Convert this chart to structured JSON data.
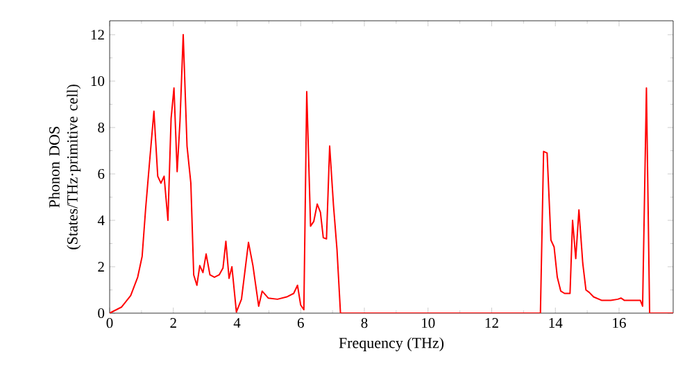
{
  "chart_data": {
    "type": "line",
    "xlabel": "Frequency (THz)",
    "ylabel": "Phonon DOS (States/THz·primitive cell)",
    "xlim": [
      0,
      17.7
    ],
    "ylim": [
      0,
      12.6
    ],
    "xticks": [
      0,
      2,
      4,
      6,
      8,
      10,
      12,
      14,
      16
    ],
    "yticks": [
      0,
      2,
      4,
      6,
      8,
      10,
      12
    ],
    "series": [
      {
        "color": "#ff0000",
        "x": [
          0,
          0.37,
          0.66,
          0.88,
          1.02,
          1.13,
          1.24,
          1.39,
          1.51,
          1.61,
          1.71,
          1.83,
          1.93,
          2.02,
          2.12,
          2.21,
          2.31,
          2.43,
          2.55,
          2.64,
          2.74,
          2.83,
          2.93,
          3.03,
          3.15,
          3.29,
          3.44,
          3.56,
          3.65,
          3.75,
          3.84,
          3.98,
          4.14,
          4.36,
          4.5,
          4.68,
          4.79,
          4.98,
          5.27,
          5.56,
          5.78,
          5.9,
          6.0,
          6.1,
          6.19,
          6.31,
          6.41,
          6.52,
          6.62,
          6.71,
          6.81,
          6.91,
          7.03,
          7.14,
          7.25,
          13.53,
          13.63,
          13.74,
          13.86,
          13.96,
          14.06,
          14.17,
          14.29,
          14.46,
          14.54,
          14.64,
          14.74,
          14.86,
          14.96,
          15.06,
          15.2,
          15.46,
          15.74,
          15.96,
          16.06,
          16.17,
          16.53,
          16.67,
          16.74,
          16.86,
          16.96,
          17.7
        ],
        "values": [
          0,
          0.26,
          0.76,
          1.55,
          2.45,
          4.5,
          6.3,
          8.7,
          5.9,
          5.6,
          5.9,
          4.0,
          8.4,
          9.7,
          6.1,
          8.3,
          12.0,
          7.2,
          5.6,
          1.65,
          1.2,
          2.05,
          1.75,
          2.55,
          1.65,
          1.55,
          1.65,
          1.95,
          3.1,
          1.5,
          2.0,
          0.05,
          0.6,
          3.05,
          2.05,
          0.3,
          0.95,
          0.65,
          0.6,
          0.7,
          0.85,
          1.2,
          0.35,
          0.15,
          9.55,
          3.75,
          3.95,
          4.7,
          4.35,
          3.25,
          3.2,
          7.2,
          4.65,
          2.75,
          0,
          0,
          6.97,
          6.9,
          3.15,
          2.85,
          1.55,
          0.95,
          0.85,
          0.85,
          4.0,
          2.35,
          4.45,
          2.15,
          1.0,
          0.9,
          0.7,
          0.55,
          0.55,
          0.6,
          0.65,
          0.55,
          0.55,
          0.55,
          0.3,
          9.7,
          0,
          0
        ]
      }
    ]
  }
}
